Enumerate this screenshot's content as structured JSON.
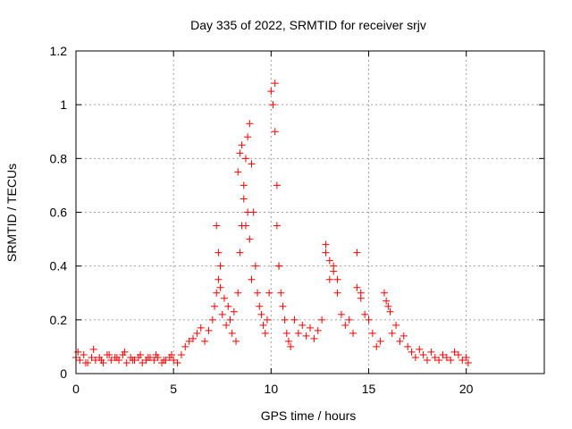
{
  "chart_data": {
    "type": "scatter",
    "title": "Day 335 of 2022, SRMTID for receiver srjv",
    "xlabel": "GPS time / hours",
    "ylabel": "SRMTID / TECUs",
    "xlim": [
      0,
      24
    ],
    "ylim": [
      0,
      1.2
    ],
    "xticks": [
      0,
      5,
      10,
      15,
      20
    ],
    "xtick_labels": [
      "0",
      "5",
      "10",
      "15",
      "20"
    ],
    "yticks": [
      0,
      0.2,
      0.4,
      0.6,
      0.8,
      1.0,
      1.2
    ],
    "ytick_labels": [
      "0",
      "0.2",
      "0.4",
      "0.6",
      "0.8",
      "1",
      "1.2"
    ],
    "grid": true,
    "marker": "+",
    "color": "#ff0000",
    "series": [
      {
        "name": "SRMTID",
        "x": [
          0.0,
          0.2,
          0.4,
          0.6,
          0.8,
          1.0,
          1.2,
          1.4,
          1.6,
          1.8,
          2.0,
          2.2,
          2.4,
          2.6,
          2.8,
          3.0,
          3.2,
          3.4,
          3.6,
          3.8,
          4.0,
          4.2,
          4.4,
          4.6,
          4.8,
          5.0,
          5.2,
          5.4,
          5.6,
          5.8,
          6.0,
          6.2,
          6.4,
          6.6,
          6.8,
          7.0,
          7.1,
          7.2,
          7.3,
          7.4,
          7.5,
          7.6,
          7.7,
          7.8,
          7.9,
          8.0,
          8.1,
          8.2,
          8.3,
          8.4,
          8.5,
          8.6,
          8.7,
          8.8,
          8.9,
          9.0,
          9.1,
          9.2,
          9.3,
          9.4,
          9.5,
          9.6,
          9.7,
          9.8,
          9.9,
          10.0,
          10.1,
          10.2,
          10.3,
          10.4,
          10.5,
          10.6,
          10.7,
          10.8,
          10.9,
          11.0,
          11.2,
          11.4,
          11.6,
          11.8,
          12.0,
          12.2,
          12.4,
          12.6,
          12.8,
          13.0,
          13.2,
          13.4,
          13.6,
          13.8,
          14.0,
          14.2,
          14.4,
          14.6,
          14.8,
          15.0,
          15.2,
          15.4,
          15.6,
          15.8,
          16.0,
          16.2,
          16.4,
          16.6,
          16.8,
          17.0,
          17.2,
          17.4,
          17.6,
          17.8,
          18.0,
          18.2,
          18.4,
          18.6,
          18.8,
          19.0,
          19.2,
          19.4,
          19.6,
          19.8,
          20.0,
          20.1,
          0.1,
          0.5,
          0.9,
          1.3,
          1.7,
          2.1,
          2.5,
          2.9,
          3.3,
          3.7,
          4.1,
          4.5,
          4.9,
          7.2,
          7.3,
          7.4,
          8.3,
          8.4,
          8.5,
          8.6,
          8.7,
          8.8,
          8.9,
          9.0,
          10.2,
          10.3,
          10.4,
          12.8,
          13.0,
          13.2,
          13.4,
          14.4,
          14.6,
          15.9,
          16.1
        ],
        "y": [
          0.06,
          0.05,
          0.07,
          0.04,
          0.06,
          0.05,
          0.06,
          0.04,
          0.07,
          0.05,
          0.06,
          0.05,
          0.07,
          0.04,
          0.06,
          0.05,
          0.06,
          0.04,
          0.05,
          0.06,
          0.05,
          0.06,
          0.04,
          0.05,
          0.06,
          0.05,
          0.04,
          0.07,
          0.1,
          0.12,
          0.13,
          0.15,
          0.17,
          0.12,
          0.16,
          0.2,
          0.25,
          0.3,
          0.35,
          0.4,
          0.22,
          0.28,
          0.18,
          0.25,
          0.2,
          0.15,
          0.23,
          0.12,
          0.3,
          0.45,
          0.55,
          0.65,
          0.8,
          0.88,
          0.93,
          0.78,
          0.6,
          0.4,
          0.3,
          0.25,
          0.22,
          0.18,
          0.15,
          0.2,
          0.3,
          1.05,
          1.0,
          0.9,
          0.55,
          0.4,
          0.3,
          0.25,
          0.2,
          0.15,
          0.12,
          0.1,
          0.2,
          0.15,
          0.18,
          0.14,
          0.17,
          0.13,
          0.16,
          0.2,
          0.45,
          0.35,
          0.4,
          0.3,
          0.22,
          0.18,
          0.2,
          0.15,
          0.45,
          0.28,
          0.22,
          0.2,
          0.15,
          0.1,
          0.12,
          0.3,
          0.25,
          0.15,
          0.18,
          0.12,
          0.14,
          0.1,
          0.08,
          0.06,
          0.09,
          0.07,
          0.05,
          0.08,
          0.06,
          0.05,
          0.07,
          0.06,
          0.05,
          0.08,
          0.07,
          0.05,
          0.06,
          0.04,
          0.08,
          0.04,
          0.09,
          0.05,
          0.07,
          0.06,
          0.08,
          0.05,
          0.07,
          0.06,
          0.07,
          0.05,
          0.07,
          0.55,
          0.45,
          0.32,
          0.75,
          0.82,
          0.85,
          0.7,
          0.55,
          0.6,
          0.5,
          0.35,
          1.08,
          0.7,
          0.4,
          0.48,
          0.42,
          0.38,
          0.35,
          0.32,
          0.3,
          0.27,
          0.23
        ],
        "color": "#ff0000"
      }
    ]
  }
}
